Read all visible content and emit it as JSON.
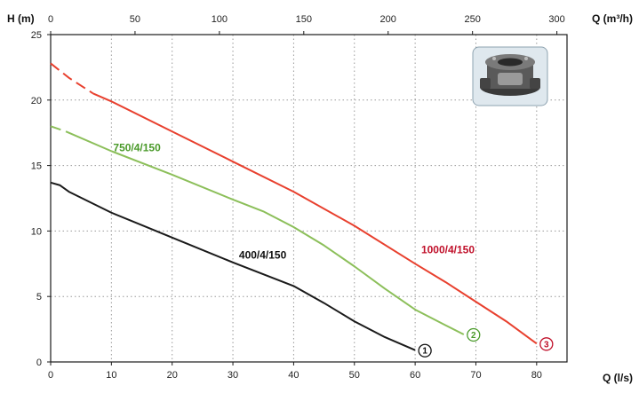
{
  "chart_data": {
    "type": "line",
    "y_axis": {
      "label": "H (m)",
      "range": [
        0,
        25
      ],
      "ticks": [
        0,
        5,
        10,
        15,
        20,
        25
      ]
    },
    "x_axis_bottom": {
      "label": "Q (l/s)",
      "range": [
        0,
        85
      ],
      "ticks": [
        0,
        10,
        20,
        30,
        40,
        50,
        60,
        70,
        80
      ]
    },
    "x_axis_top": {
      "label": "Q (m³/h)",
      "range": [
        0,
        306
      ],
      "ticks": [
        0,
        50,
        100,
        150,
        200,
        250,
        300
      ]
    },
    "grid": true,
    "series": [
      {
        "name": "400/4/150",
        "marker": "1",
        "color": "#1a1a1a",
        "dashed_until": 0,
        "points": [
          [
            0,
            13.7
          ],
          [
            1.5,
            13.5
          ],
          [
            3,
            13.0
          ],
          [
            10,
            11.4
          ],
          [
            20,
            9.5
          ],
          [
            30,
            7.6
          ],
          [
            40,
            5.8
          ],
          [
            45,
            4.5
          ],
          [
            50,
            3.1
          ],
          [
            55,
            1.9
          ],
          [
            60,
            0.9
          ]
        ]
      },
      {
        "name": "750/4/150",
        "marker": "2",
        "color": "#8cbf5a",
        "dashed_until": 2.5,
        "points": [
          [
            0,
            18.0
          ],
          [
            2.5,
            17.6
          ],
          [
            10,
            16.1
          ],
          [
            20,
            14.3
          ],
          [
            30,
            12.4
          ],
          [
            35,
            11.5
          ],
          [
            40,
            10.3
          ],
          [
            45,
            8.9
          ],
          [
            50,
            7.3
          ],
          [
            55,
            5.6
          ],
          [
            60,
            4.0
          ],
          [
            65,
            2.8
          ],
          [
            68,
            2.1
          ]
        ]
      },
      {
        "name": "1000/4/150",
        "marker": "3",
        "color": "#e8402e",
        "dashed_until": 7,
        "points": [
          [
            0,
            22.8
          ],
          [
            3,
            21.7
          ],
          [
            7,
            20.5
          ],
          [
            10,
            19.9
          ],
          [
            20,
            17.6
          ],
          [
            30,
            15.3
          ],
          [
            40,
            13.0
          ],
          [
            50,
            10.4
          ],
          [
            60,
            7.5
          ],
          [
            65,
            6.1
          ],
          [
            70,
            4.6
          ],
          [
            75,
            3.1
          ],
          [
            80,
            1.4
          ]
        ]
      }
    ],
    "annotations": {
      "series_label_color_1": "#111111",
      "series_label_color_2": "#4a9a2a",
      "series_label_color_3": "#c0102a",
      "marker_color_3": "#c0102a",
      "marker_color_2": "#4a9a2a",
      "marker_color_1": "#111111"
    }
  },
  "product_image": {
    "icon": "pump-hydraulic-icon"
  }
}
